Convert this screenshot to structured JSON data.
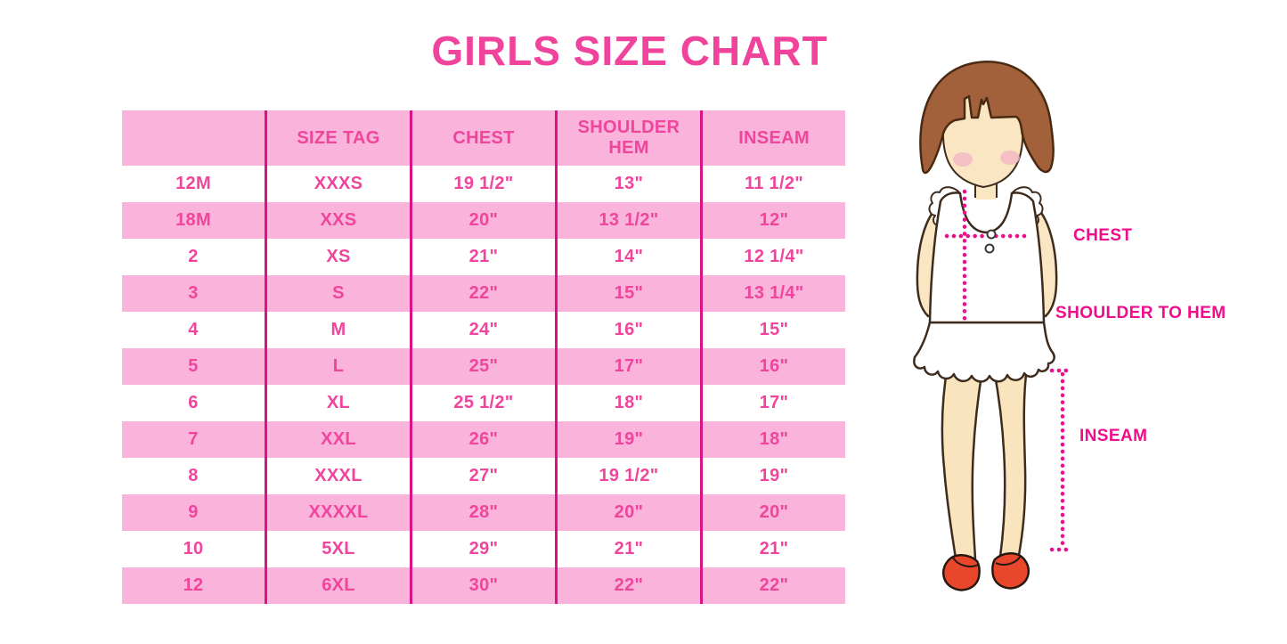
{
  "title": "GIRLS SIZE CHART",
  "chart_data": {
    "type": "table",
    "title": "GIRLS SIZE CHART",
    "columns": [
      "",
      "SIZE TAG",
      "CHEST",
      "SHOULDER HEM",
      "INSEAM"
    ],
    "rows": [
      [
        "12M",
        "XXXS",
        "19 1/2\"",
        "13\"",
        "11 1/2\""
      ],
      [
        "18M",
        "XXS",
        "20\"",
        "13 1/2\"",
        "12\""
      ],
      [
        "2",
        "XS",
        "21\"",
        "14\"",
        "12 1/4\""
      ],
      [
        "3",
        "S",
        "22\"",
        "15\"",
        "13 1/4\""
      ],
      [
        "4",
        "M",
        "24\"",
        "16\"",
        "15\""
      ],
      [
        "5",
        "L",
        "25\"",
        "17\"",
        "16\""
      ],
      [
        "6",
        "XL",
        "25 1/2\"",
        "18\"",
        "17\""
      ],
      [
        "7",
        "XXL",
        "26\"",
        "19\"",
        "18\""
      ],
      [
        "8",
        "XXXL",
        "27\"",
        "19 1/2\"",
        "19\""
      ],
      [
        "9",
        "XXXXL",
        "28\"",
        "20\"",
        "20\""
      ],
      [
        "10",
        "5XL",
        "29\"",
        "21\"",
        "21\""
      ],
      [
        "12",
        "6XL",
        "30\"",
        "22\"",
        "22\""
      ]
    ]
  },
  "figure": {
    "chest_label": "CHEST",
    "shoulder_to_hem_label": "SHOULDER TO HEM",
    "inseam_label": "INSEAM"
  },
  "colors": {
    "title_pink": "#f0439c",
    "table_text_pink": "#ef459d",
    "row_pink": "#fab3da",
    "separator_magenta": "#dd1186",
    "measure_magenta": "#f10c8c",
    "hair_brown": "#a2613b",
    "skin": "#fae6c2",
    "shoe_red": "#e9472b"
  }
}
